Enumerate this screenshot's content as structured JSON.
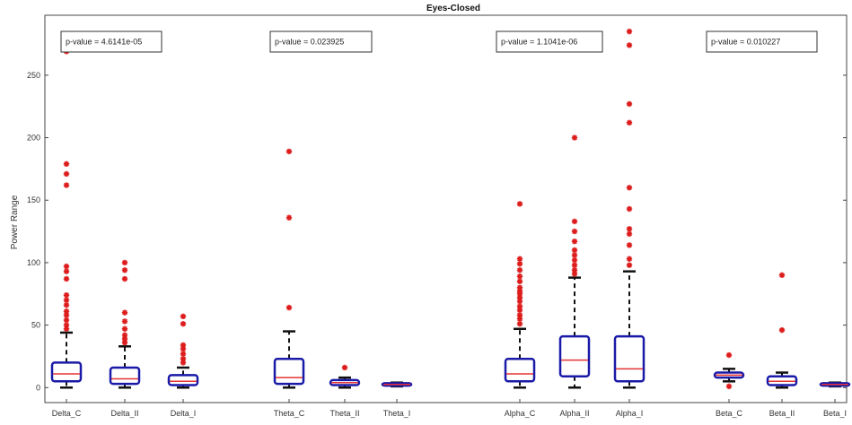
{
  "chart_data": {
    "type": "boxplot",
    "title": "Eyes-Closed",
    "xlabel": "",
    "ylabel": "Power Range",
    "ylim": [
      -12,
      298
    ],
    "yticks": [
      0,
      50,
      100,
      150,
      200,
      250
    ],
    "grid": false,
    "colors": {
      "box": "#1a1aa8",
      "median": "#e53333",
      "whisker": "#111111",
      "outlier": "#dd1c1c"
    },
    "annotations": [
      {
        "text": "p-value = 4.6141e-05"
      },
      {
        "text": "p-value = 0.023925"
      },
      {
        "text": "p-value = 1.1041e-06"
      },
      {
        "text": "p-value = 0.010227"
      }
    ],
    "boxes": [
      {
        "label": "Delta_C",
        "q1": 5,
        "median": 11,
        "q3": 20,
        "whisker_low": 0,
        "whisker_high": 44,
        "outliers": [
          269,
          271,
          179,
          171,
          162,
          97,
          93,
          87,
          74,
          70,
          66,
          61,
          58,
          54,
          50,
          47
        ]
      },
      {
        "label": "Delta_II",
        "q1": 3,
        "median": 7,
        "q3": 16,
        "whisker_low": 0,
        "whisker_high": 33,
        "outliers": [
          100,
          94,
          87,
          60,
          53,
          47,
          42,
          39,
          36
        ]
      },
      {
        "label": "Delta_I",
        "q1": 2,
        "median": 5,
        "q3": 10,
        "whisker_low": 0,
        "whisker_high": 16,
        "outliers": [
          57,
          51,
          34,
          31,
          27,
          23,
          20
        ]
      },
      {
        "label": "Theta_C",
        "q1": 3,
        "median": 8,
        "q3": 23,
        "whisker_low": 0,
        "whisker_high": 45,
        "outliers": [
          189,
          136,
          64
        ]
      },
      {
        "label": "Theta_II",
        "q1": 2,
        "median": 4,
        "q3": 6,
        "whisker_low": 0,
        "whisker_high": 8,
        "outliers": [
          16
        ]
      },
      {
        "label": "Theta_I",
        "q1": 1.5,
        "median": 2.5,
        "q3": 3.5,
        "whisker_low": 1,
        "whisker_high": 4,
        "outliers": []
      },
      {
        "label": "Alpha_C",
        "q1": 5,
        "median": 11,
        "q3": 23,
        "whisker_low": 0,
        "whisker_high": 47,
        "outliers": [
          147,
          103,
          99,
          94,
          89,
          85,
          80,
          77,
          75,
          72,
          69,
          65,
          62,
          58,
          55,
          51
        ]
      },
      {
        "label": "Alpha_II",
        "q1": 9,
        "median": 22,
        "q3": 41,
        "whisker_low": 0,
        "whisker_high": 88,
        "outliers": [
          200,
          133,
          125,
          117,
          110,
          106,
          102,
          98,
          94,
          91
        ]
      },
      {
        "label": "Alpha_I",
        "q1": 5,
        "median": 15,
        "q3": 41,
        "whisker_low": 0,
        "whisker_high": 93,
        "outliers": [
          285,
          274,
          227,
          212,
          160,
          143,
          127,
          123,
          114,
          103,
          98
        ]
      },
      {
        "label": "Beta_C",
        "q1": 8,
        "median": 10,
        "q3": 12,
        "whisker_low": 5,
        "whisker_high": 15,
        "outliers": [
          26,
          1
        ]
      },
      {
        "label": "Beta_II",
        "q1": 2,
        "median": 5,
        "q3": 9,
        "whisker_low": 0,
        "whisker_high": 12,
        "outliers": [
          90,
          46
        ]
      },
      {
        "label": "Beta_I",
        "q1": 1.5,
        "median": 2.5,
        "q3": 3.5,
        "whisker_low": 1,
        "whisker_high": 4,
        "outliers": []
      }
    ]
  }
}
